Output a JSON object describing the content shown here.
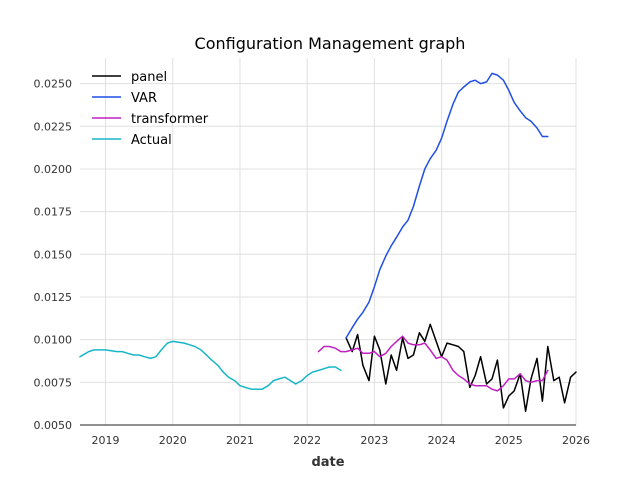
{
  "chart_data": {
    "type": "line",
    "title": "Configuration Management graph",
    "xlabel": "date",
    "ylabel": "",
    "xlim": [
      2018.62,
      2026.0
    ],
    "ylim": [
      0.005,
      0.0265
    ],
    "x_ticks": [
      2019,
      2020,
      2021,
      2022,
      2023,
      2024,
      2025,
      2026
    ],
    "x_tick_labels": [
      "2019",
      "2020",
      "2021",
      "2022",
      "2023",
      "2024",
      "2025",
      "2026"
    ],
    "y_ticks": [
      0.005,
      0.0075,
      0.01,
      0.0125,
      0.015,
      0.0175,
      0.02,
      0.0225,
      0.025
    ],
    "y_tick_labels": [
      "0.0050",
      "0.0075",
      "0.0100",
      "0.0125",
      "0.0150",
      "0.0175",
      "0.0200",
      "0.0225",
      "0.0250"
    ],
    "grid": true,
    "legend_position": "top-left",
    "series": [
      {
        "name": "panel",
        "color": "#000000",
        "x": [
          2022.58,
          2022.67,
          2022.75,
          2022.83,
          2022.92,
          2023.0,
          2023.08,
          2023.17,
          2023.25,
          2023.33,
          2023.42,
          2023.5,
          2023.58,
          2023.67,
          2023.75,
          2023.83,
          2023.92,
          2024.0,
          2024.08,
          2024.17,
          2024.25,
          2024.33,
          2024.42,
          2024.5,
          2024.58,
          2024.67,
          2024.75,
          2024.83,
          2024.92,
          2025.0,
          2025.08,
          2025.17,
          2025.25,
          2025.33,
          2025.42,
          2025.5,
          2025.58,
          2025.67,
          2025.75,
          2025.83,
          2025.92,
          2026.0
        ],
        "y": [
          0.0101,
          0.0093,
          0.0103,
          0.0085,
          0.0076,
          0.0102,
          0.0094,
          0.0074,
          0.0091,
          0.0082,
          0.0101,
          0.0089,
          0.0091,
          0.0104,
          0.0099,
          0.0109,
          0.0099,
          0.009,
          0.0098,
          0.0097,
          0.0096,
          0.0093,
          0.0072,
          0.0079,
          0.009,
          0.0074,
          0.0077,
          0.0088,
          0.006,
          0.0067,
          0.007,
          0.008,
          0.0058,
          0.0077,
          0.0089,
          0.0064,
          0.0096,
          0.0076,
          0.0078,
          0.0063,
          0.0078,
          0.0081
        ]
      },
      {
        "name": "VAR",
        "color": "#1f4fe6",
        "x": [
          2022.58,
          2022.67,
          2022.75,
          2022.83,
          2022.92,
          2023.0,
          2023.08,
          2023.17,
          2023.25,
          2023.33,
          2023.42,
          2023.5,
          2023.58,
          2023.67,
          2023.75,
          2023.83,
          2023.92,
          2024.0,
          2024.08,
          2024.17,
          2024.25,
          2024.33,
          2024.42,
          2024.5,
          2024.58,
          2024.67,
          2024.75,
          2024.83,
          2024.92,
          2025.0,
          2025.08,
          2025.17,
          2025.25,
          2025.33,
          2025.42,
          2025.5,
          2025.58
        ],
        "y": [
          0.0101,
          0.0107,
          0.0112,
          0.0116,
          0.0122,
          0.0131,
          0.0141,
          0.0149,
          0.0155,
          0.016,
          0.0166,
          0.017,
          0.0178,
          0.019,
          0.02,
          0.0206,
          0.0211,
          0.0218,
          0.0228,
          0.0238,
          0.0245,
          0.0248,
          0.0251,
          0.0252,
          0.025,
          0.0251,
          0.0256,
          0.0255,
          0.0252,
          0.0246,
          0.0239,
          0.0234,
          0.023,
          0.0228,
          0.0224,
          0.0219,
          0.0219
        ]
      },
      {
        "name": "transformer",
        "color": "#c020c0",
        "x": [
          2022.17,
          2022.25,
          2022.33,
          2022.42,
          2022.5,
          2022.58,
          2022.67,
          2022.75,
          2022.83,
          2022.92,
          2023.0,
          2023.08,
          2023.17,
          2023.25,
          2023.33,
          2023.42,
          2023.5,
          2023.58,
          2023.67,
          2023.75,
          2023.83,
          2023.92,
          2024.0,
          2024.08,
          2024.17,
          2024.25,
          2024.33,
          2024.42,
          2024.5,
          2024.58,
          2024.67,
          2024.75,
          2024.83,
          2024.92,
          2025.0,
          2025.08,
          2025.17,
          2025.25,
          2025.33,
          2025.42,
          2025.5,
          2025.58
        ],
        "y": [
          0.0093,
          0.0096,
          0.0096,
          0.0095,
          0.0093,
          0.0093,
          0.0094,
          0.0095,
          0.0092,
          0.0092,
          0.0093,
          0.009,
          0.0092,
          0.0096,
          0.0099,
          0.0102,
          0.0098,
          0.0097,
          0.0097,
          0.0098,
          0.0094,
          0.0089,
          0.009,
          0.0088,
          0.0082,
          0.0079,
          0.0077,
          0.0074,
          0.0073,
          0.0073,
          0.0073,
          0.0071,
          0.007,
          0.0073,
          0.0077,
          0.0077,
          0.008,
          0.0076,
          0.0075,
          0.0076,
          0.0076,
          0.0082
        ]
      },
      {
        "name": "Actual",
        "color": "#17b6c8",
        "x": [
          2018.62,
          2018.75,
          2018.83,
          2018.92,
          2019.0,
          2019.17,
          2019.25,
          2019.33,
          2019.42,
          2019.5,
          2019.58,
          2019.67,
          2019.75,
          2019.83,
          2019.92,
          2020.0,
          2020.17,
          2020.25,
          2020.33,
          2020.42,
          2020.5,
          2020.58,
          2020.67,
          2020.75,
          2020.83,
          2020.92,
          2021.0,
          2021.08,
          2021.17,
          2021.25,
          2021.33,
          2021.42,
          2021.5,
          2021.58,
          2021.67,
          2021.75,
          2021.83,
          2021.92,
          2022.0,
          2022.08,
          2022.17,
          2022.25,
          2022.33,
          2022.42,
          2022.5
        ],
        "y": [
          0.009,
          0.0093,
          0.0094,
          0.0094,
          0.0094,
          0.0093,
          0.0093,
          0.0092,
          0.0091,
          0.0091,
          0.009,
          0.0089,
          0.009,
          0.0094,
          0.0098,
          0.0099,
          0.0098,
          0.0097,
          0.0096,
          0.0094,
          0.0091,
          0.0088,
          0.0085,
          0.0081,
          0.0078,
          0.0076,
          0.0073,
          0.0072,
          0.0071,
          0.0071,
          0.0071,
          0.0073,
          0.0076,
          0.0077,
          0.0078,
          0.0076,
          0.0074,
          0.0076,
          0.0079,
          0.0081,
          0.0082,
          0.0083,
          0.0084,
          0.0084,
          0.0082
        ]
      }
    ]
  }
}
